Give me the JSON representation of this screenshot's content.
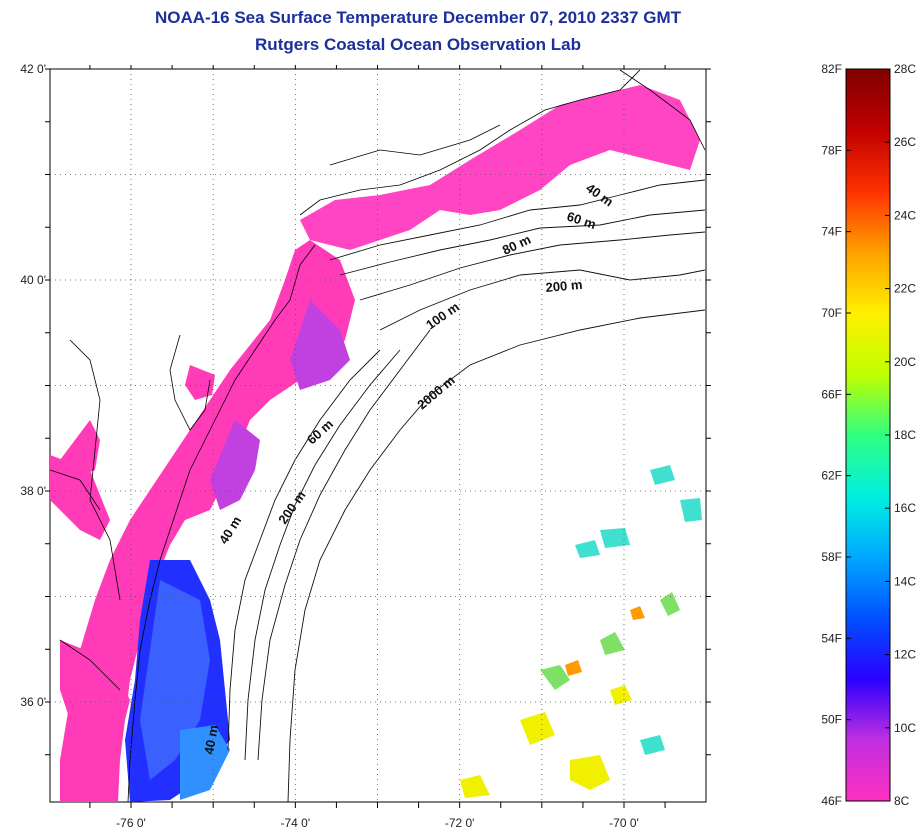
{
  "title": "NOAA-16 Sea Surface Temperature December 07, 2010 2337 GMT",
  "subtitle": "Rutgers Coastal Ocean Observation Lab",
  "map": {
    "lon_range": [
      -77.0,
      -69.0
    ],
    "lat_range": [
      35.0,
      42.0
    ],
    "lon_ticks": [
      {
        "value": -76,
        "label": "-76 0'"
      },
      {
        "value": -74,
        "label": "-74 0'"
      },
      {
        "value": -72,
        "label": "-72 0'"
      },
      {
        "value": -70,
        "label": "-70 0'"
      }
    ],
    "lat_ticks": [
      {
        "value": 42,
        "label": "42 0'"
      },
      {
        "value": 40,
        "label": "40 0'"
      },
      {
        "value": 38,
        "label": "38 0'"
      },
      {
        "value": 36,
        "label": "36 0'"
      }
    ],
    "grid": "dotted",
    "isobath_labels": [
      "40 m",
      "60 m",
      "80 m",
      "200 m",
      "100 m",
      "2000 m",
      "60 m",
      "40 m",
      "200 m",
      "40 m"
    ]
  },
  "colorbar": {
    "fahrenheit_labels": [
      "82F",
      "78F",
      "74F",
      "70F",
      "66F",
      "62F",
      "58F",
      "54F",
      "50F",
      "46F"
    ],
    "celsius_labels": [
      "28C",
      "26C",
      "24C",
      "22C",
      "20C",
      "18C",
      "16C",
      "14C",
      "12C",
      "10C",
      "8C"
    ],
    "min_c": 8,
    "max_c": 28,
    "colors": [
      "#ff2fbf",
      "#c02fe0",
      "#2a00ff",
      "#0050ff",
      "#00a8ff",
      "#00f0e0",
      "#30ff80",
      "#c0ff00",
      "#fff000",
      "#ffa000",
      "#ff3000",
      "#c00000",
      "#800000"
    ]
  }
}
